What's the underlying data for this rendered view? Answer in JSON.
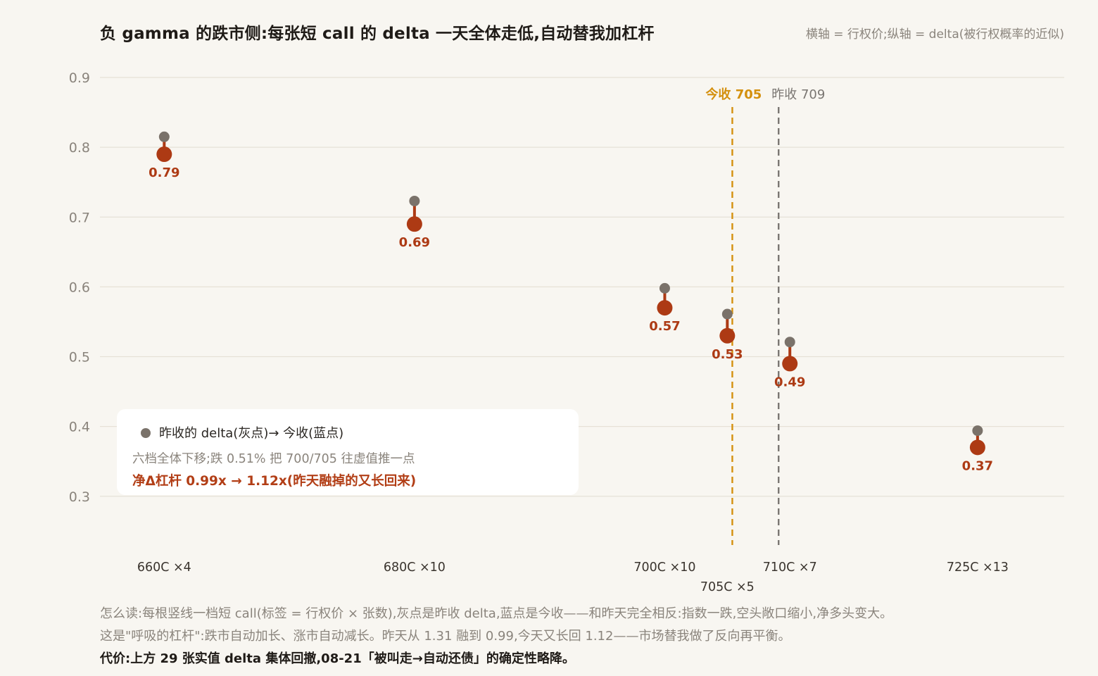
{
  "title": "负 gamma 的跌市侧:每张短 call 的 delta 一天全体走低,自动替我加杠杆",
  "axis_note": "横轴 = 行权价;纵轴 = delta(被行权概率的近似)",
  "colors": {
    "yesterday": "#7a726a",
    "today": "#ad3a14",
    "today_label": "#ad3a14",
    "close_today": "#d4900e",
    "close_yesterday": "#7a7672",
    "grid": "#e6e1d7",
    "tick": "#8a847c",
    "background": "#f8f6f1"
  },
  "legend": {
    "item": "昨收的 delta(灰点)→ 今收(蓝点)",
    "line2": "六档全体下移;跌 0.51% 把 700/705 往虚值推一点",
    "line3": "净Δ杠杆 0.99x → 1.12x(昨天融掉的又长回来)"
  },
  "footer": {
    "line1": "怎么读:每根竖线一档短 call(标签 = 行权价 × 张数),灰点是昨收 delta,蓝点是今收——和昨天完全相反:指数一跌,空头敞口缩小,净多头变大。",
    "line2": "这是\"呼吸的杠杆\":跌市自动加长、涨市自动减长。昨天从 1.31 融到 0.99,今天又长回 1.12——市场替我做了反向再平衡。",
    "line3": "代价:上方 29 张实值 delta 集体回撤,08-21「被叫走→自动还债」的确定性略降。"
  },
  "chart_data": {
    "type": "scatter",
    "x_domain": [
      648,
      738
    ],
    "ylim": [
      0.21,
      0.9
    ],
    "yticks": [
      0.3,
      0.4,
      0.5,
      0.6,
      0.7,
      0.8,
      0.9
    ],
    "ytick_labels": [
      "0.3",
      "0.4",
      "0.5",
      "0.6",
      "0.7",
      "0.8",
      "0.9"
    ],
    "grid": true,
    "categories": [
      "660C ×4",
      "680C ×10",
      "700C ×10",
      "705C ×5",
      "710C ×7",
      "725C ×13"
    ],
    "strikes": [
      660,
      680,
      700,
      705,
      710,
      725
    ],
    "contracts": [
      4,
      10,
      10,
      5,
      7,
      13
    ],
    "series": [
      {
        "name": "昨收 delta",
        "values": [
          0.815,
          0.723,
          0.598,
          0.561,
          0.521,
          0.394
        ]
      },
      {
        "name": "今收 delta",
        "values": [
          0.79,
          0.69,
          0.57,
          0.53,
          0.49,
          0.37
        ]
      }
    ],
    "value_labels": [
      "0.79",
      "0.69",
      "0.57",
      "0.53",
      "0.49",
      "0.37"
    ],
    "reference_lines": [
      {
        "label": "今收 705",
        "x": 705.4
      },
      {
        "label": "昨收 709",
        "x": 709.1
      }
    ]
  }
}
